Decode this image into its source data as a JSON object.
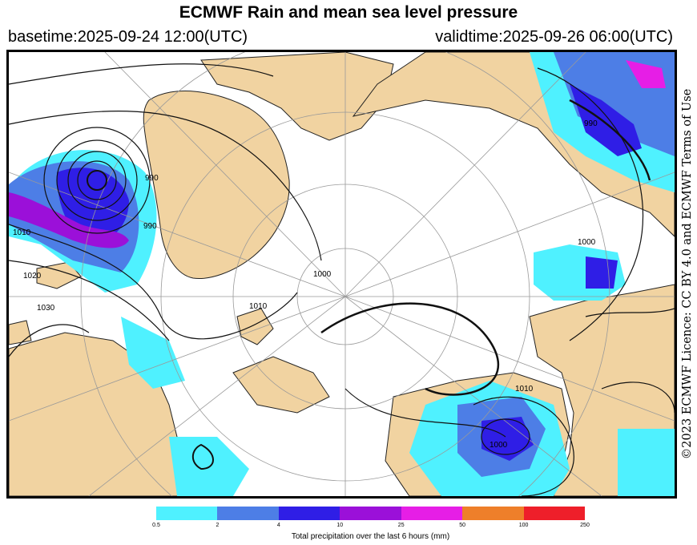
{
  "header": {
    "title": "ECMWF Rain and mean sea level pressure",
    "basetime": "basetime:2025-09-24 12:00(UTC)",
    "validtime": "validtime:2025-09-26 06:00(UTC)"
  },
  "map": {
    "isobar_labels": [
      "1010",
      "1020",
      "1030",
      "990",
      "1000",
      "1010",
      "1000",
      "990",
      "1010",
      "1000",
      "990"
    ]
  },
  "licence": "©2023 ECMWF Licence: CC BY 4.0 and ECMWF Terms of Use",
  "colorbar": {
    "label": "Total precipitation over the last 6 hours (mm)",
    "ticks": [
      "0.5",
      "2",
      "4",
      "10",
      "25",
      "50",
      "100",
      "250"
    ],
    "colors": [
      "#4ff1ff",
      "#4d7ee6",
      "#2f1ee6",
      "#9b10d9",
      "#e61ee6",
      "#ee7f2a",
      "#ee1f2a"
    ]
  }
}
